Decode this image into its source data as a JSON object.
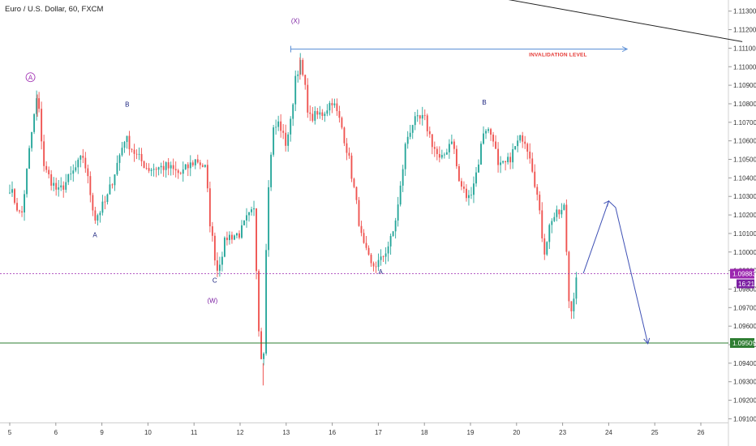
{
  "chart_data": {
    "type": "candlestick",
    "title": "Euro / U.S. Dollar, 60, FXCM",
    "symbol": "Euro / U.S. Dollar",
    "timeframe": "60",
    "broker": "FXCM",
    "y_ticks": [
      "1.11300",
      "1.11200",
      "1.11100",
      "1.11000",
      "1.10900",
      "1.10800",
      "1.10700",
      "1.10600",
      "1.10500",
      "1.10400",
      "1.10300",
      "1.10200",
      "1.10100",
      "1.10000",
      "1.09900",
      "1.09800",
      "1.09700",
      "1.09600",
      "1.09500",
      "1.09400",
      "1.09300",
      "1.09200",
      "1.09100"
    ],
    "x_ticks": [
      "5",
      "6",
      "9",
      "10",
      "11",
      "12",
      "13",
      "16",
      "17",
      "18",
      "19",
      "20",
      "23",
      "24",
      "25",
      "26"
    ],
    "ylim": [
      1.0908,
      1.1136
    ],
    "price_tags": [
      {
        "label": "1.09883",
        "value": 1.09883,
        "sub": "16:21",
        "color": "#9c27b0"
      },
      {
        "label": "1.09509",
        "value": 1.09509,
        "color": "#2e7d32"
      }
    ],
    "wave_labels": [
      {
        "text": "A",
        "x": 0.45,
        "y": 1.1093,
        "color": "#9c27b0",
        "circled": true
      },
      {
        "text": "B",
        "x": 2.55,
        "y": 1.10785,
        "color": "#1a237e"
      },
      {
        "text": "A",
        "x": 1.85,
        "y": 1.1008,
        "color": "#1a237e"
      },
      {
        "text": "C",
        "x": 4.45,
        "y": 1.09835,
        "color": "#1a237e"
      },
      {
        "text": "(W)",
        "x": 4.4,
        "y": 1.09725,
        "color": "#7b1fa2"
      },
      {
        "text": "(X)",
        "x": 6.2,
        "y": 1.11235,
        "color": "#7b1fa2"
      },
      {
        "text": "A",
        "x": 8.05,
        "y": 1.0988,
        "color": "#1a237e"
      },
      {
        "text": "B",
        "x": 10.3,
        "y": 1.10795,
        "color": "#1a237e"
      }
    ],
    "invalidation": {
      "label": "INVALIDATION LEVEL",
      "value": 1.11095,
      "x_start": 6.1,
      "x_end": 13.4,
      "label_x": 11.9,
      "label_y": 1.11055
    },
    "trendline": {
      "x0": 10.2,
      "y0": 1.1139,
      "x1": 15.9,
      "y1": 1.11135
    },
    "projection": [
      {
        "x": 12.45,
        "y": 1.09885
      },
      {
        "x": 13.0,
        "y": 1.10275
      },
      {
        "x": 13.15,
        "y": 1.1024
      },
      {
        "x": 13.85,
        "y": 1.09505
      }
    ],
    "key_points": [
      {
        "x": 0.0,
        "y": 1.1035
      },
      {
        "x": 0.25,
        "y": 1.1018
      },
      {
        "x": 0.45,
        "y": 1.106
      },
      {
        "x": 0.6,
        "y": 1.1085
      },
      {
        "x": 0.75,
        "y": 1.1045
      },
      {
        "x": 1.05,
        "y": 1.1032
      },
      {
        "x": 1.35,
        "y": 1.1042
      },
      {
        "x": 1.6,
        "y": 1.1052
      },
      {
        "x": 1.85,
        "y": 1.1018
      },
      {
        "x": 2.1,
        "y": 1.1028
      },
      {
        "x": 2.5,
        "y": 1.1062
      },
      {
        "x": 2.75,
        "y": 1.1052
      },
      {
        "x": 3.0,
        "y": 1.1045
      },
      {
        "x": 3.4,
        "y": 1.1046
      },
      {
        "x": 3.7,
        "y": 1.1042
      },
      {
        "x": 4.05,
        "y": 1.105
      },
      {
        "x": 4.25,
        "y": 1.1045
      },
      {
        "x": 4.35,
        "y": 1.1015
      },
      {
        "x": 4.5,
        "y": 1.099
      },
      {
        "x": 4.7,
        "y": 1.1008
      },
      {
        "x": 5.0,
        "y": 1.101
      },
      {
        "x": 5.15,
        "y": 1.1018
      },
      {
        "x": 5.3,
        "y": 1.1022
      },
      {
        "x": 5.42,
        "y": 1.0952
      },
      {
        "x": 5.5,
        "y": 1.0935
      },
      {
        "x": 5.58,
        "y": 1.102
      },
      {
        "x": 5.7,
        "y": 1.1065
      },
      {
        "x": 5.85,
        "y": 1.107
      },
      {
        "x": 5.98,
        "y": 1.1058
      },
      {
        "x": 6.1,
        "y": 1.107
      },
      {
        "x": 6.2,
        "y": 1.1095
      },
      {
        "x": 6.3,
        "y": 1.1102
      },
      {
        "x": 6.4,
        "y": 1.109
      },
      {
        "x": 6.5,
        "y": 1.1072
      },
      {
        "x": 6.8,
        "y": 1.1075
      },
      {
        "x": 7.0,
        "y": 1.1082
      },
      {
        "x": 7.2,
        "y": 1.1068
      },
      {
        "x": 7.35,
        "y": 1.1052
      },
      {
        "x": 7.5,
        "y": 1.103
      },
      {
        "x": 7.65,
        "y": 1.1005
      },
      {
        "x": 7.85,
        "y": 1.0992
      },
      {
        "x": 8.05,
        "y": 1.0995
      },
      {
        "x": 8.3,
        "y": 1.1008
      },
      {
        "x": 8.45,
        "y": 1.1028
      },
      {
        "x": 8.6,
        "y": 1.106
      },
      {
        "x": 8.75,
        "y": 1.107
      },
      {
        "x": 9.0,
        "y": 1.1072
      },
      {
        "x": 9.15,
        "y": 1.106
      },
      {
        "x": 9.35,
        "y": 1.1048
      },
      {
        "x": 9.6,
        "y": 1.1062
      },
      {
        "x": 9.75,
        "y": 1.1038
      },
      {
        "x": 9.95,
        "y": 1.1028
      },
      {
        "x": 10.15,
        "y": 1.1045
      },
      {
        "x": 10.3,
        "y": 1.1068
      },
      {
        "x": 10.5,
        "y": 1.1062
      },
      {
        "x": 10.6,
        "y": 1.1045
      },
      {
        "x": 10.8,
        "y": 1.1048
      },
      {
        "x": 11.0,
        "y": 1.1058
      },
      {
        "x": 11.15,
        "y": 1.1063
      },
      {
        "x": 11.3,
        "y": 1.1052
      },
      {
        "x": 11.45,
        "y": 1.103
      },
      {
        "x": 11.6,
        "y": 1.1
      },
      {
        "x": 11.75,
        "y": 1.1018
      },
      {
        "x": 12.0,
        "y": 1.1022
      },
      {
        "x": 12.05,
        "y": 1.1025
      },
      {
        "x": 12.12,
        "y": 1.0975
      },
      {
        "x": 12.2,
        "y": 1.097
      },
      {
        "x": 12.32,
        "y": 1.0988
      }
    ]
  }
}
